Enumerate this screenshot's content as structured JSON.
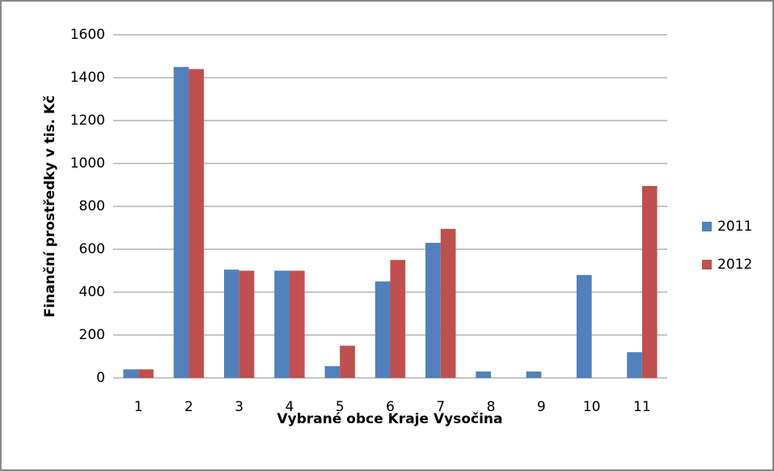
{
  "chart_data": {
    "type": "bar",
    "xlabel": "Vybrané obce Kraje Vysočina",
    "ylabel": "Finanční prostředky v tis. Kč",
    "categories": [
      "1",
      "2",
      "3",
      "4",
      "5",
      "6",
      "7",
      "8",
      "9",
      "10",
      "11"
    ],
    "series": [
      {
        "name": "2011",
        "color": "#4f81bd",
        "values": [
          40,
          1450,
          505,
          500,
          55,
          450,
          630,
          30,
          30,
          480,
          120
        ]
      },
      {
        "name": "2012",
        "color": "#c0504d",
        "values": [
          40,
          1440,
          500,
          500,
          150,
          550,
          695,
          0,
          0,
          0,
          895
        ]
      }
    ],
    "ylim": [
      0,
      1600
    ],
    "yticks": [
      0,
      200,
      400,
      600,
      800,
      1000,
      1200,
      1400,
      1600
    ],
    "grid": true,
    "legend": "right"
  }
}
